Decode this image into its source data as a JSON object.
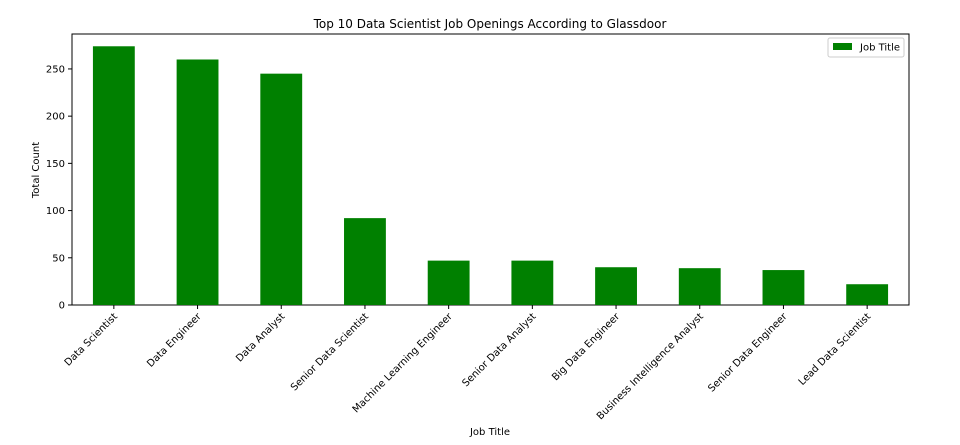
{
  "chart_data": {
    "type": "bar",
    "title": "Top 10 Data Scientist Job Openings According to Glassdoor",
    "xlabel": "Job Title",
    "ylabel": "Total Count",
    "categories": [
      "Data Scientist",
      "Data Engineer",
      "Data Analyst",
      "Senior Data Scientist",
      "Machine Learning Engineer",
      "Senior Data Analyst",
      "Big Data Engineer",
      "Business Intelligence Analyst",
      "Senior Data Engineer",
      "Lead Data Scientist"
    ],
    "series": [
      {
        "name": "Job Title",
        "values": [
          274,
          260,
          245,
          92,
          47,
          47,
          40,
          39,
          37,
          22
        ]
      }
    ],
    "ylim": [
      0,
      287
    ],
    "yticks": [
      0,
      50,
      100,
      150,
      200,
      250
    ],
    "grid": false,
    "legend_position": "top-right",
    "bar_color": "#008000"
  }
}
